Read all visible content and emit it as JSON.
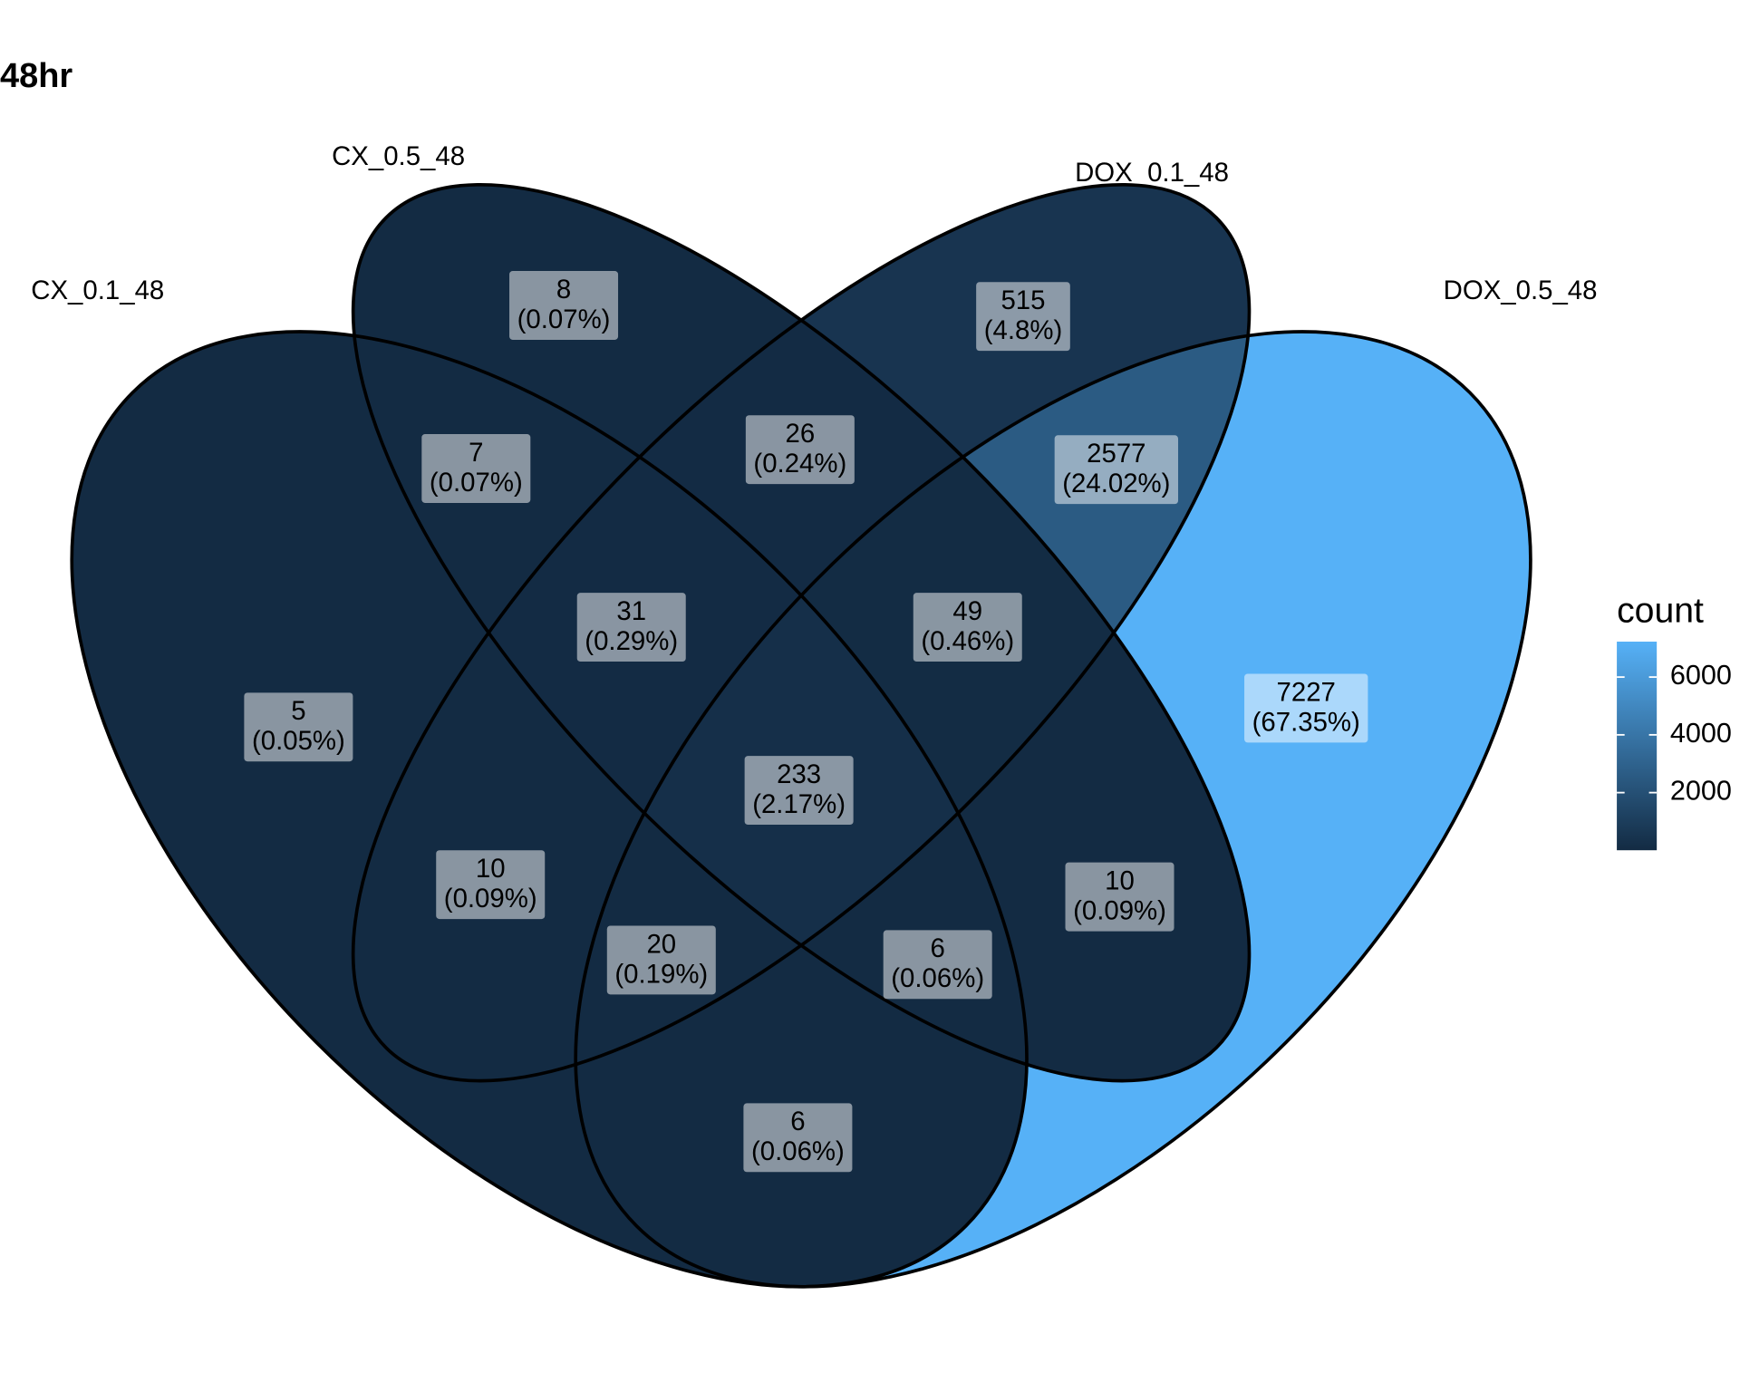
{
  "chart_data": {
    "type": "venn",
    "title": "48hr",
    "sets": [
      "CX_0.1_48",
      "CX_0.5_48",
      "DOX_0.1_48",
      "DOX_0.5_48"
    ],
    "values": [
      5,
      8,
      515,
      7227,
      7,
      26,
      2577,
      31,
      49,
      233,
      10,
      10,
      20,
      6,
      6
    ],
    "percent_labels": [
      "(0.05%)",
      "(0.07%)",
      "(4.8%)",
      "(67.35%)",
      "(0.07%)",
      "(0.24%)",
      "(24.02%)",
      "(0.29%)",
      "(0.46%)",
      "(2.17%)",
      "(0.09%)",
      "(0.09%)",
      "(0.19%)",
      "(0.06%)",
      "(0.06%)"
    ],
    "colorscale": {
      "title": "count",
      "low": "#132B43",
      "high": "#56B1F7",
      "lim": [
        5,
        7227
      ],
      "ticks": [
        2000,
        4000,
        6000
      ]
    }
  }
}
